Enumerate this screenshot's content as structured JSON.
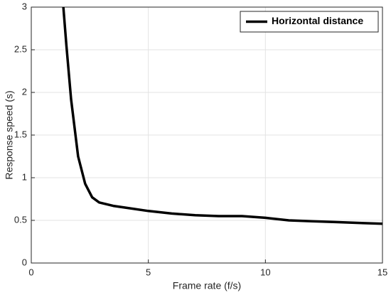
{
  "chart_data": {
    "type": "line",
    "xlabel": "Frame rate (f/s)",
    "ylabel": "Response speed (s)",
    "x": [
      1.37,
      1.5,
      1.7,
      2.0,
      2.3,
      2.6,
      2.9,
      3.5,
      4,
      5,
      6,
      7,
      8,
      9,
      10,
      11,
      12,
      13,
      14,
      15
    ],
    "series": [
      {
        "name": "Horizontal distance",
        "color": "#000000",
        "values": [
          3,
          2.55,
          1.92,
          1.25,
          0.93,
          0.77,
          0.71,
          0.67,
          0.65,
          0.61,
          0.58,
          0.56,
          0.55,
          0.55,
          0.53,
          0.5,
          0.49,
          0.48,
          0.47,
          0.46
        ]
      }
    ],
    "xlim": [
      0,
      15
    ],
    "xticks": [
      0,
      5,
      10,
      15
    ],
    "ylim": [
      0,
      3
    ],
    "yticks": [
      0,
      0.5,
      1,
      1.5,
      2,
      2.5,
      3
    ],
    "grid": true,
    "legend": "northeast"
  }
}
